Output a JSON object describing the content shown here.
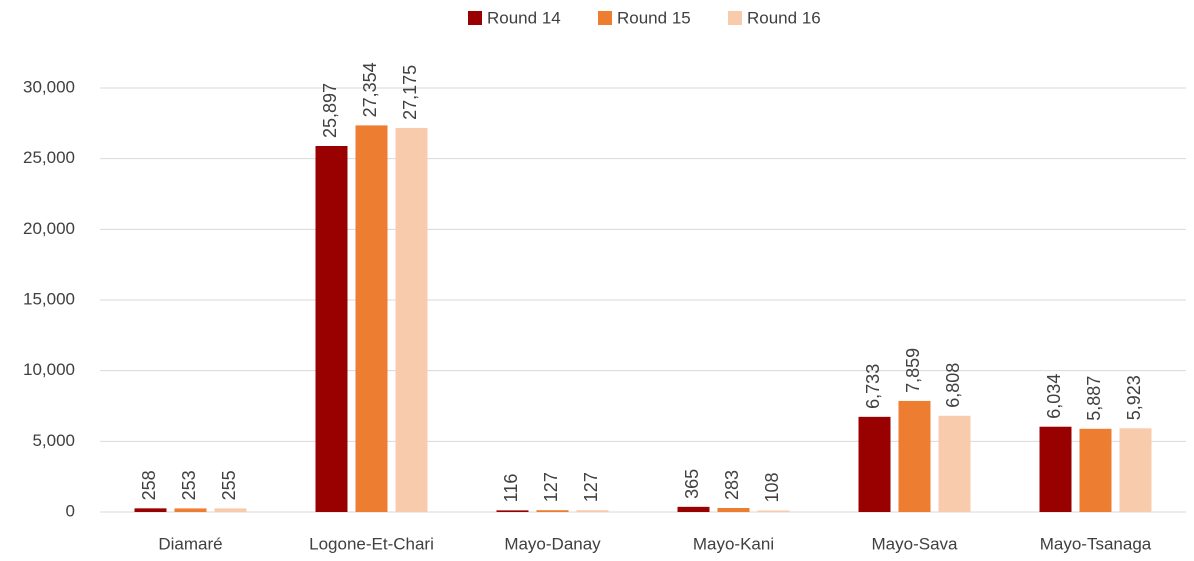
{
  "chart_data": {
    "type": "bar",
    "categories": [
      "Diamaré",
      "Logone-Et-Chari",
      "Mayo-Danay",
      "Mayo-Kani",
      "Mayo-Sava",
      "Mayo-Tsanaga"
    ],
    "series": [
      {
        "name": "Round 14",
        "color": "#990000",
        "values": [
          258,
          25897,
          116,
          365,
          6733,
          6034
        ],
        "value_labels": [
          "258",
          "25,897",
          "116",
          "365",
          "6,733",
          "6,034"
        ]
      },
      {
        "name": "Round 15",
        "color": "#ED7D31",
        "values": [
          253,
          27354,
          127,
          283,
          7859,
          5887
        ],
        "value_labels": [
          "253",
          "27,354",
          "127",
          "283",
          "7,859",
          "5,887"
        ]
      },
      {
        "name": "Round 16",
        "color": "#F8CBAD",
        "values": [
          255,
          27175,
          127,
          108,
          6808,
          5923
        ],
        "value_labels": [
          "255",
          "27,175",
          "127",
          "108",
          "6,808",
          "5,923"
        ]
      }
    ],
    "ylim": [
      0,
      30000
    ],
    "yticks": [
      0,
      {
        "value": 5000,
        "label": "5,000"
      },
      {
        "value": 10000,
        "label": "10,000"
      },
      {
        "value": 15000,
        "label": "15,000"
      },
      {
        "value": 20000,
        "label": "20,000"
      },
      {
        "value": 25000,
        "label": "25,000"
      },
      {
        "value": 30000,
        "label": "30,000"
      }
    ],
    "grid": true,
    "legend": "top"
  }
}
